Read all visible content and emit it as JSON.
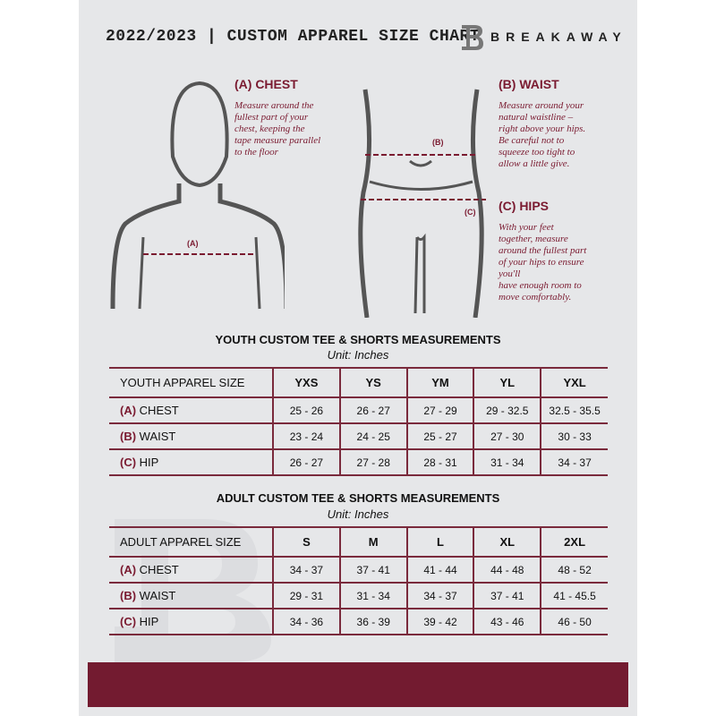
{
  "header": {
    "title": "2022/2023  |  CUSTOM APPAREL SIZE CHART",
    "brand": "BREAKAWAY",
    "logo_letter": "B"
  },
  "chest": {
    "heading": "(A) CHEST",
    "marker": "(A)",
    "desc": [
      "Measure around the",
      "fullest part of your",
      "chest, keeping the",
      "tape measure parallel",
      "to the floor"
    ]
  },
  "waist": {
    "heading": "(B) WAIST",
    "marker": "(B)",
    "desc": [
      "Measure around your",
      "natural waistline –",
      "right above your hips.",
      "Be careful not to",
      "squeeze too tight to",
      "allow a little give."
    ]
  },
  "hips": {
    "heading": "(C) HIPS",
    "marker": "(C)",
    "desc": [
      "With your feet",
      "together, measure",
      "around the fullest part",
      "of your hips to ensure",
      "you'll",
      "have enough room to",
      "move comfortably."
    ]
  },
  "youth": {
    "title": "YOUTH CUSTOM TEE & SHORTS MEASUREMENTS",
    "unit": "Unit: Inches",
    "header": [
      "YOUTH APPAREL SIZE",
      "YXS",
      "YS",
      "YM",
      "YL",
      "YXL"
    ],
    "rows": [
      {
        "letter": "(A)",
        "label": "CHEST",
        "values": [
          "25 - 26",
          "26 - 27",
          "27 - 29",
          "29 - 32.5",
          "32.5 - 35.5"
        ]
      },
      {
        "letter": "(B)",
        "label": "WAIST",
        "values": [
          "23 - 24",
          "24 - 25",
          "25 - 27",
          "27 - 30",
          "30 - 33"
        ]
      },
      {
        "letter": "(C)",
        "label": "HIP",
        "values": [
          "26 - 27",
          "27 - 28",
          "28 - 31",
          "31 - 34",
          "34 - 37"
        ]
      }
    ]
  },
  "adult": {
    "title": "ADULT CUSTOM TEE & SHORTS MEASUREMENTS",
    "unit": "Unit: Inches",
    "header": [
      "ADULT APPAREL SIZE",
      "S",
      "M",
      "L",
      "XL",
      "2XL"
    ],
    "rows": [
      {
        "letter": "(A)",
        "label": "CHEST",
        "values": [
          "34 - 37",
          "37 - 41",
          "41 - 44",
          "44 - 48",
          "48 - 52"
        ]
      },
      {
        "letter": "(B)",
        "label": "WAIST",
        "values": [
          "29 - 31",
          "31 - 34",
          "34 - 37",
          "37 - 41",
          "41 - 45.5"
        ]
      },
      {
        "letter": "(C)",
        "label": "HIP",
        "values": [
          "34 - 36",
          "36 - 39",
          "39 - 42",
          "43 - 46",
          "46 - 50"
        ]
      }
    ]
  },
  "colors": {
    "accent": "#731b30",
    "background": "#e6e7e9"
  }
}
